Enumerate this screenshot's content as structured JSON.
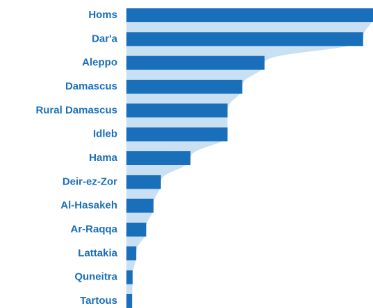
{
  "chart_data": {
    "type": "bar",
    "orientation": "horizontal",
    "categories": [
      "Homs",
      "Dar'a",
      "Aleppo",
      "Damascus",
      "Rural Damascus",
      "Idleb",
      "Hama",
      "Deir-ez-Zor",
      "Al-Hasakeh",
      "Ar-Raqqa",
      "Lattakia",
      "Quneitra",
      "Tartous"
    ],
    "values": [
      100,
      96,
      56,
      47,
      41,
      41,
      26,
      14,
      11,
      8,
      4,
      2.5,
      2.3
    ],
    "color": "#1a6fba",
    "area_color": "#c9e0f3"
  }
}
